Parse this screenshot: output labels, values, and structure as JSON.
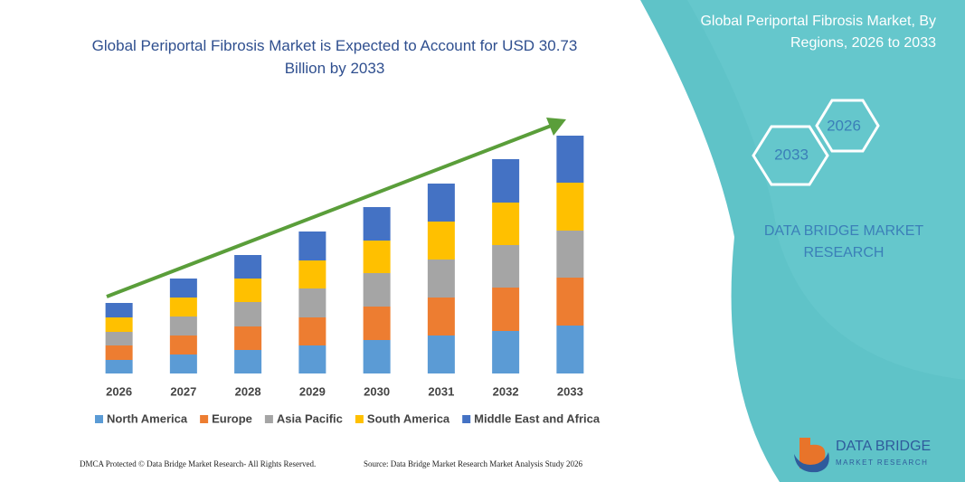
{
  "chart_data": {
    "type": "bar",
    "stacked": true,
    "title": "Global Periportal Fibrosis Market is Expected to Account for USD 30.73 Billion by 2033",
    "categories": [
      "2026",
      "2027",
      "2028",
      "2029",
      "2030",
      "2031",
      "2032",
      "2033"
    ],
    "series": [
      {
        "name": "North America",
        "color": "#5b9bd5",
        "values": [
          15,
          21,
          26,
          31,
          37,
          42,
          47,
          53
        ]
      },
      {
        "name": "Europe",
        "color": "#ed7d31",
        "values": [
          16,
          21,
          26,
          31,
          37,
          42,
          48,
          53
        ]
      },
      {
        "name": "Asia Pacific",
        "color": "#a5a5a5",
        "values": [
          15,
          21,
          27,
          32,
          37,
          42,
          47,
          52
        ]
      },
      {
        "name": "South America",
        "color": "#ffc000",
        "values": [
          16,
          21,
          26,
          31,
          36,
          42,
          47,
          53
        ]
      },
      {
        "name": "Middle East and Africa",
        "color": "#4472c4",
        "values": [
          16,
          21,
          26,
          32,
          37,
          42,
          48,
          52
        ]
      }
    ],
    "ylim": [
      0,
      280
    ]
  },
  "panel": {
    "title": "Global Periportal Fibrosis Market, By Regions, 2026 to 2033",
    "hexagons": [
      "2026",
      "2033"
    ],
    "brand": "DATA BRIDGE MARKET RESEARCH"
  },
  "logo": {
    "name": "DATA BRIDGE",
    "tagline": "MARKET RESEARCH"
  },
  "footer": {
    "left": "DMCA Protected © Data Bridge Market Research- All Rights Reserved.",
    "right": "Source: Data Bridge Market Research Market Analysis Study 2026"
  }
}
